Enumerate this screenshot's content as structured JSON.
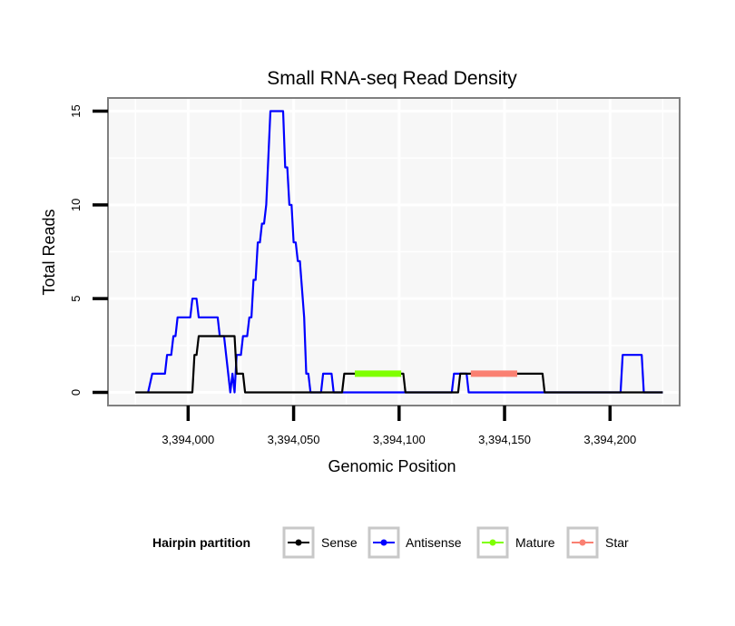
{
  "chart_data": {
    "type": "line",
    "title": "Small RNA-seq Read Density",
    "xlabel": "Genomic Position",
    "ylabel": "Total Reads",
    "xlim": [
      3393962,
      3394233
    ],
    "ylim": [
      -0.7,
      15.7
    ],
    "x_ticks": [
      3394000,
      3394050,
      3394100,
      3394150,
      3394200
    ],
    "x_tick_labels": [
      "3,394,000",
      "3,394,050",
      "3,394,100",
      "3,394,150",
      "3,394,200"
    ],
    "y_ticks": [
      0,
      5,
      10,
      15
    ],
    "y_tick_labels": [
      "0",
      "5",
      "10",
      "15"
    ],
    "grid": true,
    "legend": {
      "title": "Hairpin partition",
      "placement": "bottom",
      "entries": [
        "Sense",
        "Antisense",
        "Mature",
        "Star"
      ]
    },
    "series": [
      {
        "name": "Sense",
        "color": "#000000",
        "kind": "line",
        "x": [
          3393975,
          3394002,
          3394003,
          3394004,
          3394005,
          3394022,
          3394023,
          3394026,
          3394027,
          3394073,
          3394074,
          3394102,
          3394103,
          3394128,
          3394129,
          3394168,
          3394169,
          3394191,
          3394192,
          3394225
        ],
        "y": [
          0,
          0,
          2,
          2,
          3,
          3,
          1,
          1,
          0,
          0,
          1,
          1,
          0,
          0,
          1,
          1,
          0,
          0,
          0,
          0
        ]
      },
      {
        "name": "Antisense",
        "color": "#0000ff",
        "kind": "line",
        "x": [
          3393981,
          3393983,
          3393989,
          3393990,
          3393992,
          3393993,
          3393994,
          3393995,
          3394001,
          3394002,
          3394004,
          3394005,
          3394014,
          3394015,
          3394017,
          3394018,
          3394019,
          3394020,
          3394021,
          3394022,
          3394023,
          3394025,
          3394026,
          3394028,
          3394029,
          3394030,
          3394031,
          3394032,
          3394033,
          3394034,
          3394035,
          3394036,
          3394037,
          3394039,
          3394040,
          3394041,
          3394045,
          3394046,
          3394047,
          3394048,
          3394049,
          3394050,
          3394051,
          3394052,
          3394053,
          3394055,
          3394056,
          3394057,
          3394058,
          3394059,
          3394060,
          3394063,
          3394064,
          3394068,
          3394069,
          3394075,
          3394101,
          3394125,
          3394126,
          3394132,
          3394133,
          3394152,
          3394166,
          3394171,
          3394205,
          3394206,
          3394215,
          3394216,
          3394225
        ],
        "y": [
          0,
          1,
          1,
          2,
          2,
          3,
          3,
          4,
          4,
          5,
          5,
          4,
          4,
          3,
          3,
          2,
          1,
          0,
          1,
          0,
          2,
          2,
          3,
          3,
          4,
          4,
          6,
          6,
          8,
          8,
          9,
          9,
          10,
          15,
          15,
          15,
          15,
          12,
          12,
          10,
          10,
          8,
          8,
          7,
          7,
          4,
          1,
          1,
          0,
          0,
          0,
          0,
          1,
          1,
          0,
          0,
          0,
          0,
          1,
          1,
          0,
          0,
          0,
          0,
          0,
          2,
          2,
          0,
          0
        ]
      },
      {
        "name": "Mature",
        "color": "#7fff00",
        "kind": "segment",
        "x": [
          3394079,
          3394101
        ],
        "y": [
          1,
          1
        ]
      },
      {
        "name": "Star",
        "color": "#fa8072",
        "kind": "segment",
        "x": [
          3394134,
          3394156
        ],
        "y": [
          1,
          1
        ]
      }
    ]
  }
}
